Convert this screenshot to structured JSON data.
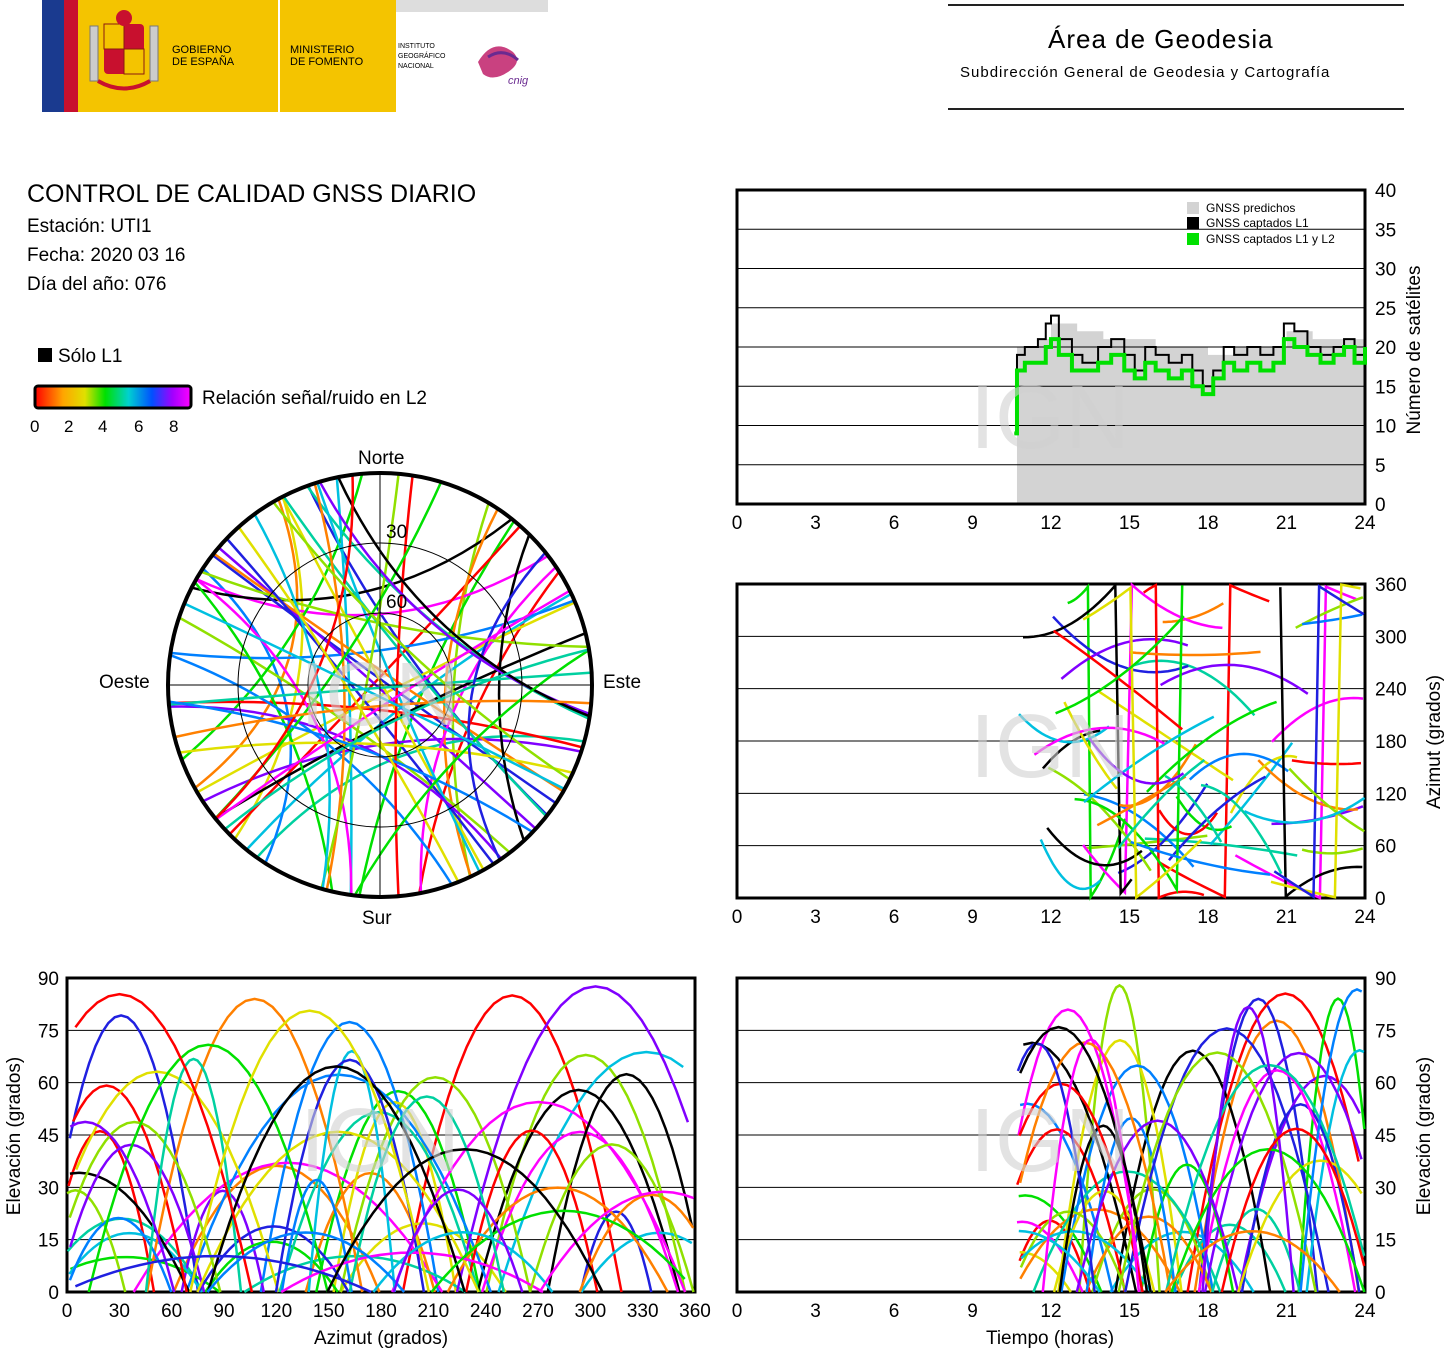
{
  "header": {
    "gob_line1": "GOBIERNO",
    "gob_line2": "DE ESPAÑA",
    "min_line1": "MINISTERIO",
    "min_line2": "DE FOMENTO",
    "ign_line1": "INSTITUTO",
    "ign_line2": "GEOGRÁFICO",
    "ign_line3": "NACIONAL",
    "cnig": "cnig",
    "area_title": "Área de Geodesia",
    "area_subtitle": "Subdirección General de Geodesia y Cartografía"
  },
  "info": {
    "title": "CONTROL DE CALIDAD GNSS DIARIO",
    "station": "Estación: UTI1",
    "date": "Fecha: 2020 03 16",
    "doy": "Día del año: 076"
  },
  "legend": {
    "solo_l1": "Sólo L1",
    "snr_label": "Relación señal/ruido en L2",
    "snr_ticks": [
      "0",
      "2",
      "4",
      "6",
      "8"
    ]
  },
  "watermark": "IGN",
  "skyplot": {
    "north": "Norte",
    "south": "Sur",
    "east": "Este",
    "west": "Oeste",
    "ring_labels": [
      "30",
      "60"
    ]
  },
  "chart_data": [
    {
      "type": "line",
      "id": "sat-count",
      "xlabel": "",
      "ylabel": "Número de satélites",
      "xlim": [
        0,
        24
      ],
      "ylim": [
        0,
        40
      ],
      "xticks": [
        "0",
        "3",
        "6",
        "9",
        "12",
        "15",
        "18",
        "21",
        "24"
      ],
      "yticks": [
        "0",
        "5",
        "10",
        "15",
        "20",
        "25",
        "30",
        "35",
        "40"
      ],
      "legend": [
        "GNSS predichos",
        "GNSS captados L1",
        "GNSS captados L1 y L2"
      ],
      "colors": {
        "predicted": "#d3d3d3",
        "l1": "#000000",
        "l1l2": "#00e000"
      },
      "series": [
        {
          "name": "GNSS predichos",
          "x": [
            10.7,
            11.5,
            12,
            13,
            14,
            15,
            16,
            17,
            18,
            19,
            20,
            21,
            22,
            23,
            24
          ],
          "y": [
            20,
            21,
            23,
            22,
            21,
            21,
            20,
            20,
            19,
            20,
            20,
            22,
            21,
            21,
            21
          ]
        },
        {
          "name": "GNSS captados L1",
          "x": [
            10.6,
            10.7,
            11,
            11.5,
            11.8,
            12,
            12.3,
            12.8,
            13.2,
            13.8,
            14.3,
            14.8,
            15.2,
            15.6,
            16,
            16.5,
            17,
            17.4,
            17.8,
            18.2,
            18.6,
            19,
            19.5,
            20,
            20.5,
            20.9,
            21.3,
            21.8,
            22.3,
            22.8,
            23.2,
            23.6,
            24
          ],
          "y": [
            9,
            19,
            20,
            21,
            23,
            24,
            21,
            19,
            18,
            20,
            21,
            19,
            17,
            20,
            19,
            18,
            19,
            17,
            15,
            17,
            20,
            19,
            20,
            19,
            20,
            23,
            22,
            20,
            19,
            20,
            21,
            19,
            21
          ]
        },
        {
          "name": "GNSS captados L1 y L2",
          "x": [
            10.6,
            10.7,
            11,
            11.5,
            11.8,
            12,
            12.3,
            12.8,
            13.2,
            13.8,
            14.3,
            14.8,
            15.2,
            15.6,
            16,
            16.5,
            17,
            17.4,
            17.8,
            18.2,
            18.6,
            19,
            19.5,
            20,
            20.5,
            20.9,
            21.3,
            21.8,
            22.3,
            22.8,
            23.2,
            23.6,
            24
          ],
          "y": [
            9,
            17,
            18,
            18,
            20,
            21,
            19,
            17,
            17,
            18,
            19,
            17,
            16,
            18,
            17,
            16,
            17,
            15,
            14,
            16,
            18,
            17,
            18,
            17,
            18,
            21,
            20,
            19,
            18,
            19,
            20,
            18,
            20
          ]
        }
      ]
    },
    {
      "type": "scatter",
      "id": "azimuth-time",
      "xlabel": "",
      "ylabel": "Azimut (grados)",
      "xlim": [
        0,
        24
      ],
      "ylim": [
        0,
        360
      ],
      "xticks": [
        "0",
        "3",
        "6",
        "9",
        "12",
        "15",
        "18",
        "21",
        "24"
      ],
      "yticks": [
        "0",
        "60",
        "120",
        "180",
        "240",
        "300",
        "360"
      ]
    },
    {
      "type": "scatter",
      "id": "elevation-azimuth",
      "xlabel": "Azimut (grados)",
      "ylabel": "Elevación (grados)",
      "xlim": [
        0,
        360
      ],
      "ylim": [
        0,
        90
      ],
      "xticks": [
        "0",
        "30",
        "60",
        "90",
        "120",
        "150",
        "180",
        "210",
        "240",
        "270",
        "300",
        "330",
        "360"
      ],
      "yticks": [
        "0",
        "15",
        "30",
        "45",
        "60",
        "75",
        "90"
      ]
    },
    {
      "type": "scatter",
      "id": "elevation-time",
      "xlabel": "Tiempo (horas)",
      "ylabel": "Elevación (grados)",
      "xlim": [
        0,
        24
      ],
      "ylim": [
        0,
        90
      ],
      "xticks": [
        "0",
        "3",
        "6",
        "9",
        "12",
        "15",
        "18",
        "21",
        "24"
      ],
      "yticks": [
        "0",
        "15",
        "30",
        "45",
        "60",
        "75",
        "90"
      ]
    }
  ]
}
